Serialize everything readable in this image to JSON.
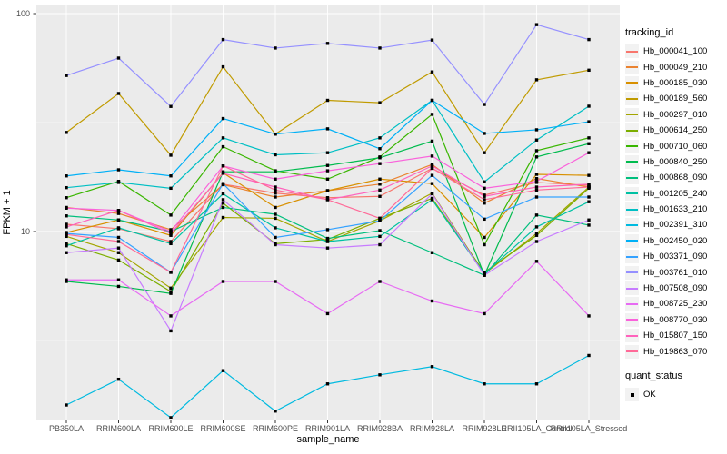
{
  "figure": {
    "background": "#FFFFFF",
    "panel_background": "#EBEBEB",
    "grid_color": "#FFFFFF",
    "tick_label_color": "#4D4D4D",
    "tick_mark_color": "#333333",
    "point_color": "#000000",
    "legend_key_background": "#F2F2F2"
  },
  "axes": {
    "y_label": "FPKM + 1",
    "x_label": "sample_name",
    "y_scale": "log10",
    "y_ticks": [
      {
        "value": 10,
        "label": "10"
      },
      {
        "value": 100,
        "label": "100"
      }
    ],
    "y_minor_breaks": [
      3.162,
      31.62
    ]
  },
  "legend": {
    "tracking_title": "tracking_id",
    "quant_title": "quant_status",
    "quant_items": [
      {
        "label": "OK"
      }
    ]
  },
  "chart_data": {
    "type": "line",
    "title": "",
    "xlabel": "sample_name",
    "ylabel": "FPKM + 1",
    "y_scale": "log10",
    "ylim": [
      1.35,
      110
    ],
    "grid": true,
    "legend_position": "right",
    "marker": "black-square",
    "categories": [
      "PB350LA",
      "RRIM600LA",
      "RRIM600LE",
      "RRIM600SE",
      "RRIM600PE",
      "RRIM901LA",
      "RRIM928BA",
      "RRIM928LA",
      "RRIM928LE",
      "RRII105LA_Control",
      "RRII105LA_Stressed"
    ],
    "quant_status": "OK",
    "series": [
      {
        "name": "Hb_000041_100",
        "color": "#F8766D",
        "values": [
          10.8,
          10.3,
          9.0,
          16.5,
          15.0,
          14.3,
          14.5,
          19.5,
          14.7,
          16.8,
          16.3
        ]
      },
      {
        "name": "Hb_000049_210",
        "color": "#EA8331",
        "values": [
          12.9,
          12.1,
          10.2,
          16.4,
          14.4,
          15.4,
          16.5,
          20.3,
          13.5,
          17.5,
          16.0
        ]
      },
      {
        "name": "Hb_000185_030",
        "color": "#D89000",
        "values": [
          9.9,
          11.3,
          9.6,
          18.6,
          12.9,
          15.4,
          17.4,
          16.6,
          9.4,
          18.3,
          18.1
        ]
      },
      {
        "name": "Hb_000189_560",
        "color": "#C09B00",
        "values": [
          28.5,
          43.0,
          22.4,
          57.0,
          28.0,
          40.0,
          39.0,
          54.0,
          23.0,
          49.7,
          55.0
        ]
      },
      {
        "name": "Hb_000297_010",
        "color": "#A3A500",
        "values": [
          9.5,
          8.0,
          5.5,
          11.6,
          11.5,
          9.0,
          11.2,
          15.0,
          6.4,
          9.8,
          16.0
        ]
      },
      {
        "name": "Hb_000614_250",
        "color": "#7CAE00",
        "values": [
          8.8,
          7.4,
          5.3,
          13.5,
          8.8,
          9.2,
          11.5,
          14.2,
          6.5,
          9.6,
          15.8
        ]
      },
      {
        "name": "Hb_000710_060",
        "color": "#39B600",
        "values": [
          14.3,
          17.0,
          11.9,
          24.5,
          19.0,
          17.4,
          22.0,
          34.5,
          8.7,
          23.5,
          26.9
        ]
      },
      {
        "name": "Hb_000840_250",
        "color": "#00BB4E",
        "values": [
          5.9,
          5.6,
          5.2,
          18.8,
          18.8,
          20.1,
          21.8,
          26.0,
          6.3,
          22.0,
          25.3
        ]
      },
      {
        "name": "Hb_000868_090",
        "color": "#00BF7D",
        "values": [
          11.8,
          11.3,
          10.0,
          12.9,
          12.0,
          9.3,
          10.1,
          8.0,
          6.3,
          11.9,
          10.7
        ]
      },
      {
        "name": "Hb_001205_240",
        "color": "#00C1A3",
        "values": [
          8.6,
          10.4,
          8.8,
          14.9,
          10.4,
          9.0,
          9.5,
          14.0,
          6.4,
          10.5,
          13.7
        ]
      },
      {
        "name": "Hb_001633_210",
        "color": "#00BFC4",
        "values": [
          15.9,
          16.8,
          15.8,
          26.9,
          22.5,
          23.0,
          26.9,
          40.0,
          16.9,
          26.3,
          37.6
        ]
      },
      {
        "name": "Hb_002391_310",
        "color": "#00BAE0",
        "values": [
          1.6,
          2.1,
          1.4,
          2.3,
          1.5,
          2.0,
          2.2,
          2.4,
          2.0,
          2.0,
          2.7
        ]
      },
      {
        "name": "Hb_002450_020",
        "color": "#00B0F6",
        "values": [
          18.0,
          19.2,
          18.0,
          33.0,
          28.0,
          29.6,
          24.0,
          40.0,
          28.2,
          29.3,
          31.9
        ]
      },
      {
        "name": "Hb_003371_090",
        "color": "#35A2FF",
        "values": [
          9.8,
          9.4,
          6.5,
          16.6,
          9.4,
          10.2,
          11.2,
          18.1,
          11.4,
          14.4,
          14.4
        ]
      },
      {
        "name": "Hb_003761_010",
        "color": "#9590FF",
        "values": [
          52.0,
          62.5,
          37.5,
          76.0,
          69.5,
          73.0,
          69.5,
          75.6,
          38.3,
          89.0,
          76.0
        ]
      },
      {
        "name": "Hb_007508_090",
        "color": "#C77CFF",
        "values": [
          8.0,
          8.4,
          3.5,
          14.0,
          8.7,
          8.4,
          8.7,
          14.9,
          6.3,
          9.0,
          11.3
        ]
      },
      {
        "name": "Hb_008725_230",
        "color": "#E76BF3",
        "values": [
          6.0,
          6.0,
          4.1,
          5.9,
          5.9,
          4.2,
          5.9,
          4.8,
          4.2,
          7.3,
          4.1
        ]
      },
      {
        "name": "Hb_008770_030",
        "color": "#FA62DB",
        "values": [
          12.8,
          12.5,
          10.0,
          20.0,
          17.4,
          19.0,
          20.5,
          22.2,
          15.8,
          17.0,
          23.0
        ]
      },
      {
        "name": "Hb_015807_150",
        "color": "#FF62BC",
        "values": [
          10.5,
          12.5,
          9.8,
          18.5,
          16.0,
          14.0,
          15.5,
          20.0,
          14.5,
          16.0,
          16.5
        ]
      },
      {
        "name": "Hb_019863_070",
        "color": "#FF6A98",
        "values": [
          9.7,
          9.0,
          6.5,
          20.0,
          15.5,
          14.0,
          11.5,
          19.5,
          14.0,
          15.5,
          16.0
        ]
      }
    ]
  }
}
